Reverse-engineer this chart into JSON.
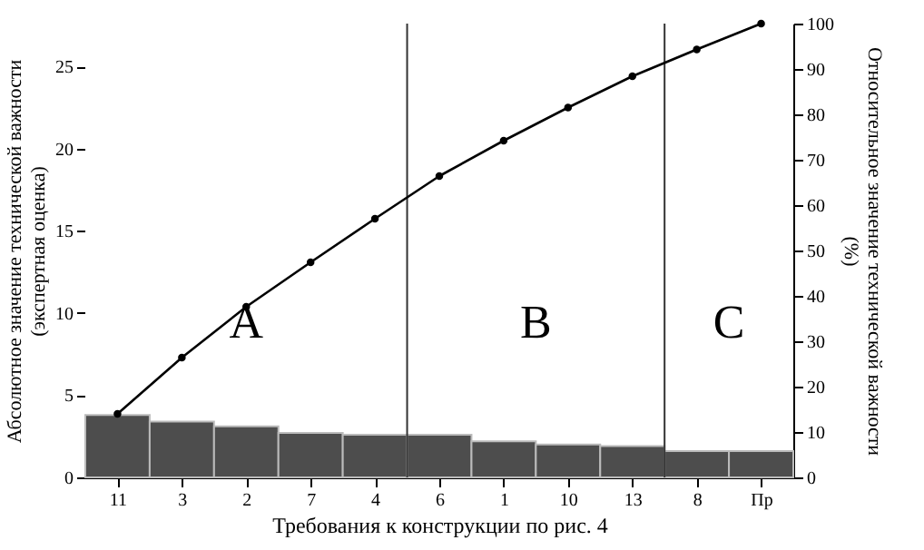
{
  "chart_data": {
    "type": "bar",
    "xlabel": "Требования к конструкции по рис. 4",
    "ylabel": "Абсолютное значение технической важности\n(экспертная оценка)",
    "y2label": "Относительное значение технической важности\n(%)",
    "categories": [
      "11",
      "3",
      "2",
      "7",
      "4",
      "6",
      "1",
      "10",
      "13",
      "8",
      "Пр"
    ],
    "series": [
      {
        "color": "#4d4d4d",
        "values": [
          3.8,
          3.4,
          3.1,
          2.7,
          2.6,
          2.6,
          2.2,
          2.0,
          1.9,
          1.6,
          1.6
        ]
      },
      {
        "type": "line",
        "axis": "y2",
        "color": "#000000",
        "values": [
          14,
          26.4,
          37.6,
          47.4,
          57,
          66.4,
          74.2,
          81.5,
          88.4,
          94.3,
          100
        ]
      }
    ],
    "ylim": [
      0,
      27.6
    ],
    "yticks": [
      0,
      5,
      10,
      15,
      20,
      25
    ],
    "y2lim": [
      0,
      100
    ],
    "y2ticks": [
      0,
      10,
      20,
      30,
      40,
      50,
      60,
      70,
      80,
      90,
      100
    ],
    "bands": [
      {
        "axis": "x",
        "from": "11",
        "to": "4",
        "label": "A",
        "color": "#ffffff"
      },
      {
        "axis": "x",
        "from": "6",
        "to": "13",
        "label": "B",
        "color": "#ffffff"
      },
      {
        "axis": "x",
        "from": "8",
        "to": "Пр",
        "label": "C",
        "color": "#ffffff"
      }
    ],
    "marker": "circle"
  }
}
